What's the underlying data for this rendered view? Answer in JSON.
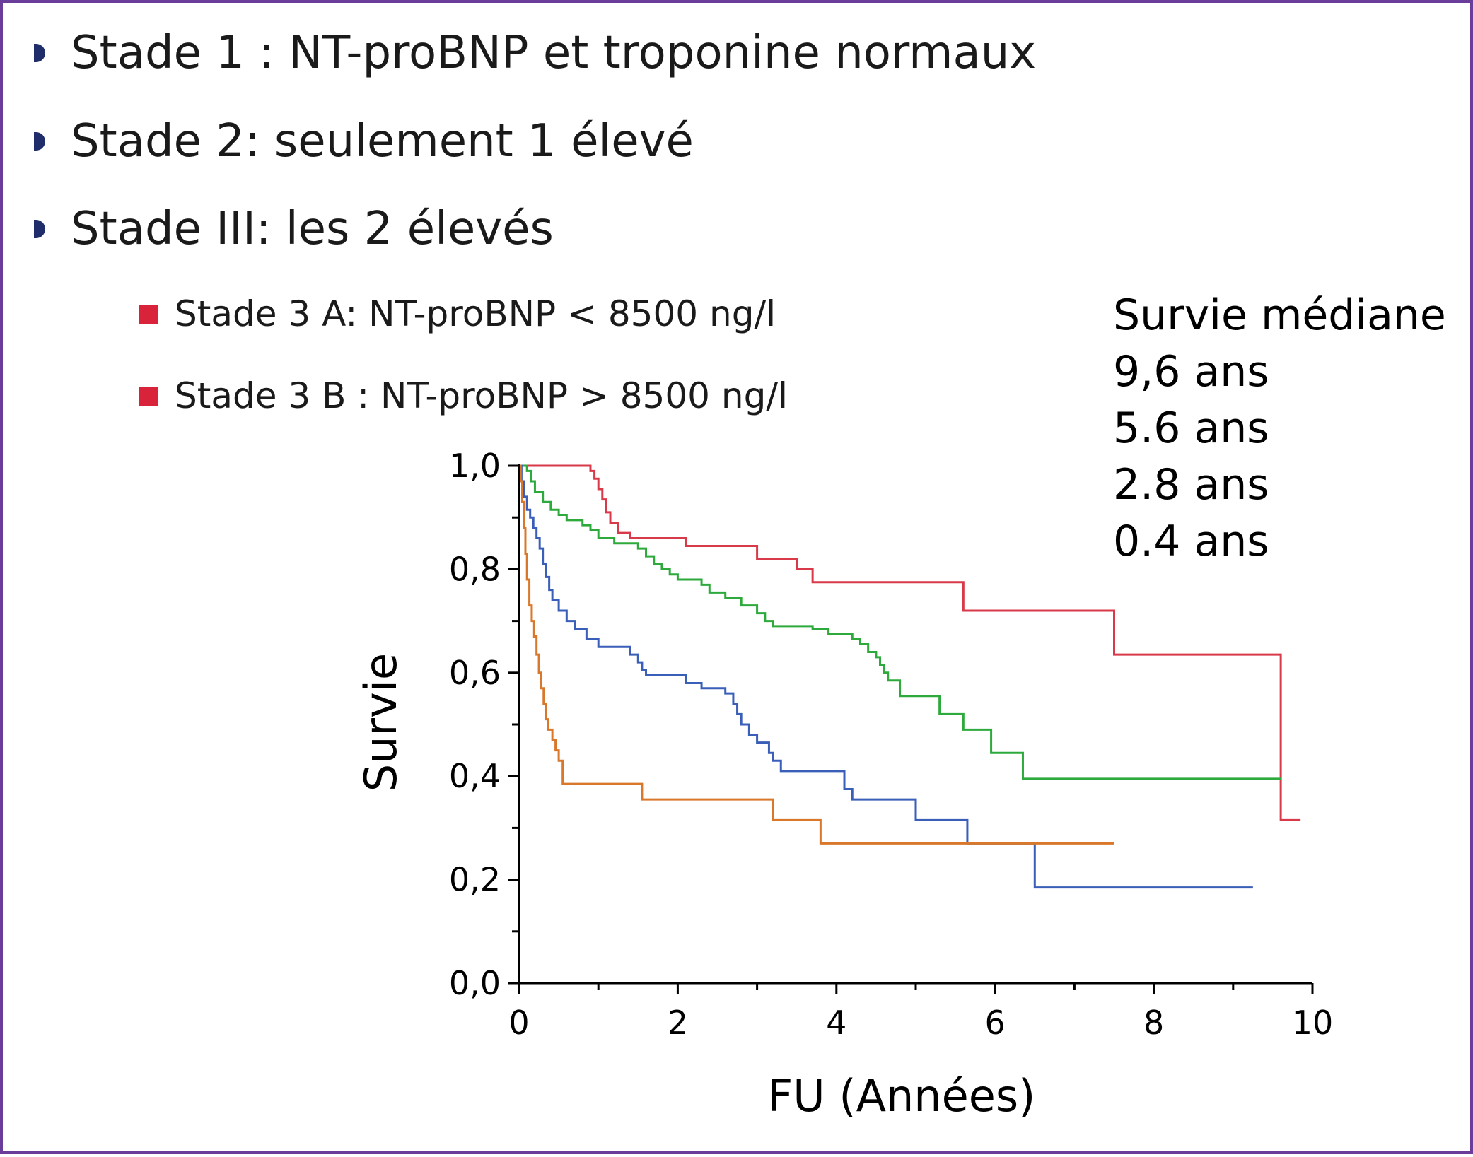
{
  "bullets": [
    {
      "text": "Stade 1 : NT-proBNP et troponine normaux"
    },
    {
      "text": "Stade 2: seulement 1 élevé"
    },
    {
      "text": "Stade III: les 2 élevés"
    }
  ],
  "sub_bullets": [
    {
      "text": "Stade 3 A: NT-proBNP < 8500 ng/l"
    },
    {
      "text": "Stade 3 B : NT-proBNP > 8500 ng/l"
    }
  ],
  "median_survival": {
    "header": "Survie médiane",
    "values": [
      "9,6 ans",
      "5.6 ans",
      "2.8 ans",
      "0.4 ans"
    ]
  },
  "colors": {
    "border": "#6a3d9a",
    "bullet": "#1f2d6b",
    "sub_bullet": "#d9233a",
    "stage1": "#d93a4a",
    "stage2": "#2eaa3c",
    "stage3a": "#3a5fb8",
    "stage3b": "#d9782a"
  },
  "chart_data": {
    "type": "line",
    "step": true,
    "title": "",
    "xlabel": "FU (Années)",
    "ylabel": "Survie",
    "xlim": [
      0,
      10
    ],
    "ylim": [
      0,
      1
    ],
    "x_ticks": [
      0,
      2,
      4,
      6,
      8,
      10
    ],
    "x_tick_labels": [
      "0",
      "2",
      "4",
      "6",
      "8",
      "10"
    ],
    "y_ticks": [
      0,
      0.2,
      0.4,
      0.6,
      0.8,
      1.0
    ],
    "y_tick_labels": [
      "0,0",
      "0,2",
      "0,4",
      "0,6",
      "0,8",
      "1,0"
    ],
    "series": [
      {
        "color": "#d93a4a",
        "points": [
          [
            0,
            1.0
          ],
          [
            0.9,
            0.99
          ],
          [
            0.95,
            0.975
          ],
          [
            1.0,
            0.955
          ],
          [
            1.05,
            0.935
          ],
          [
            1.1,
            0.91
          ],
          [
            1.15,
            0.89
          ],
          [
            1.25,
            0.87
          ],
          [
            1.4,
            0.86
          ],
          [
            2.1,
            0.845
          ],
          [
            3.0,
            0.82
          ],
          [
            3.5,
            0.8
          ],
          [
            3.7,
            0.775
          ],
          [
            5.6,
            0.72
          ],
          [
            7.5,
            0.635
          ],
          [
            9.6,
            0.315
          ],
          [
            9.85,
            0.315
          ]
        ]
      },
      {
        "color": "#2eaa3c",
        "points": [
          [
            0,
            1.0
          ],
          [
            0.1,
            0.99
          ],
          [
            0.15,
            0.97
          ],
          [
            0.2,
            0.95
          ],
          [
            0.3,
            0.93
          ],
          [
            0.4,
            0.915
          ],
          [
            0.5,
            0.905
          ],
          [
            0.6,
            0.895
          ],
          [
            0.8,
            0.885
          ],
          [
            0.9,
            0.875
          ],
          [
            1.0,
            0.86
          ],
          [
            1.2,
            0.85
          ],
          [
            1.5,
            0.84
          ],
          [
            1.6,
            0.825
          ],
          [
            1.7,
            0.81
          ],
          [
            1.8,
            0.8
          ],
          [
            1.9,
            0.79
          ],
          [
            2.0,
            0.78
          ],
          [
            2.3,
            0.77
          ],
          [
            2.4,
            0.755
          ],
          [
            2.6,
            0.745
          ],
          [
            2.8,
            0.73
          ],
          [
            3.0,
            0.715
          ],
          [
            3.1,
            0.7
          ],
          [
            3.2,
            0.69
          ],
          [
            3.7,
            0.685
          ],
          [
            3.9,
            0.675
          ],
          [
            4.2,
            0.665
          ],
          [
            4.3,
            0.655
          ],
          [
            4.4,
            0.64
          ],
          [
            4.5,
            0.63
          ],
          [
            4.55,
            0.615
          ],
          [
            4.6,
            0.6
          ],
          [
            4.65,
            0.585
          ],
          [
            4.8,
            0.555
          ],
          [
            5.3,
            0.52
          ],
          [
            5.6,
            0.49
          ],
          [
            5.95,
            0.445
          ],
          [
            6.35,
            0.395
          ],
          [
            9.6,
            0.395
          ]
        ]
      },
      {
        "color": "#3a5fb8",
        "points": [
          [
            0,
            1.0
          ],
          [
            0.03,
            0.97
          ],
          [
            0.06,
            0.94
          ],
          [
            0.1,
            0.915
          ],
          [
            0.14,
            0.9
          ],
          [
            0.18,
            0.88
          ],
          [
            0.22,
            0.86
          ],
          [
            0.26,
            0.84
          ],
          [
            0.3,
            0.81
          ],
          [
            0.34,
            0.785
          ],
          [
            0.38,
            0.76
          ],
          [
            0.42,
            0.74
          ],
          [
            0.5,
            0.72
          ],
          [
            0.6,
            0.7
          ],
          [
            0.7,
            0.685
          ],
          [
            0.85,
            0.665
          ],
          [
            1.0,
            0.65
          ],
          [
            1.4,
            0.635
          ],
          [
            1.5,
            0.62
          ],
          [
            1.55,
            0.605
          ],
          [
            1.6,
            0.595
          ],
          [
            2.1,
            0.58
          ],
          [
            2.3,
            0.57
          ],
          [
            2.6,
            0.56
          ],
          [
            2.7,
            0.54
          ],
          [
            2.75,
            0.52
          ],
          [
            2.8,
            0.5
          ],
          [
            2.9,
            0.48
          ],
          [
            3.0,
            0.465
          ],
          [
            3.15,
            0.445
          ],
          [
            3.2,
            0.43
          ],
          [
            3.3,
            0.41
          ],
          [
            3.7,
            0.41
          ],
          [
            4.1,
            0.375
          ],
          [
            4.2,
            0.355
          ],
          [
            5.0,
            0.315
          ],
          [
            5.65,
            0.27
          ],
          [
            6.5,
            0.185
          ],
          [
            9.25,
            0.185
          ]
        ]
      },
      {
        "color": "#d9782a",
        "points": [
          [
            0,
            1.0
          ],
          [
            0.02,
            0.97
          ],
          [
            0.04,
            0.93
          ],
          [
            0.06,
            0.88
          ],
          [
            0.08,
            0.83
          ],
          [
            0.1,
            0.78
          ],
          [
            0.13,
            0.73
          ],
          [
            0.16,
            0.7
          ],
          [
            0.19,
            0.67
          ],
          [
            0.22,
            0.635
          ],
          [
            0.25,
            0.6
          ],
          [
            0.28,
            0.57
          ],
          [
            0.31,
            0.54
          ],
          [
            0.34,
            0.51
          ],
          [
            0.37,
            0.49
          ],
          [
            0.42,
            0.47
          ],
          [
            0.46,
            0.45
          ],
          [
            0.5,
            0.43
          ],
          [
            0.55,
            0.385
          ],
          [
            1.55,
            0.355
          ],
          [
            3.2,
            0.315
          ],
          [
            3.8,
            0.27
          ],
          [
            7.5,
            0.27
          ]
        ]
      }
    ]
  }
}
